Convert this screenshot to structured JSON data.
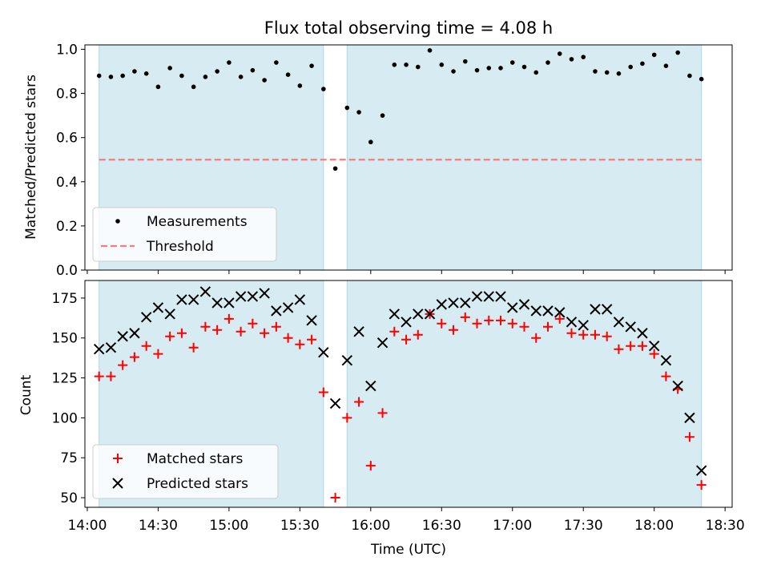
{
  "title": "Flux total observing time = 4.08 h",
  "colors": {
    "shade": "#add8e6",
    "measurement": "#000000",
    "threshold": "#f08080",
    "matched": "#ff0000",
    "predicted": "#000000"
  },
  "chart_data": [
    {
      "type": "scatter",
      "panel": "top",
      "ylabel": "Matched/Predicted stars",
      "xlabel": "",
      "ylim": [
        0.0,
        1.02
      ],
      "xlim": [
        "13:59",
        "18:33"
      ],
      "yticks": [
        "0.0",
        "0.2",
        "0.4",
        "0.6",
        "0.8",
        "1.0"
      ],
      "grid": false,
      "legend_position": "lower-left",
      "shaded_intervals": [
        [
          "14:05",
          "15:40"
        ],
        [
          "15:50",
          "18:20"
        ]
      ],
      "threshold": {
        "name": "Threshold",
        "value": 0.5,
        "style": "dashed"
      },
      "series": [
        {
          "name": "Measurements",
          "marker": "dot",
          "x": [
            "14:05",
            "14:10",
            "14:15",
            "14:20",
            "14:25",
            "14:30",
            "14:35",
            "14:40",
            "14:45",
            "14:50",
            "14:55",
            "15:00",
            "15:05",
            "15:10",
            "15:15",
            "15:20",
            "15:25",
            "15:30",
            "15:35",
            "15:40",
            "15:45",
            "15:50",
            "15:55",
            "16:00",
            "16:05",
            "16:10",
            "16:15",
            "16:20",
            "16:25",
            "16:30",
            "16:35",
            "16:40",
            "16:45",
            "16:50",
            "16:55",
            "17:00",
            "17:05",
            "17:10",
            "17:15",
            "17:20",
            "17:25",
            "17:30",
            "17:35",
            "17:40",
            "17:45",
            "17:50",
            "17:55",
            "18:00",
            "18:05",
            "18:10",
            "18:15",
            "18:20"
          ],
          "y": [
            0.88,
            0.875,
            0.88,
            0.9,
            0.89,
            0.83,
            0.915,
            0.88,
            0.83,
            0.875,
            0.9,
            0.94,
            0.875,
            0.905,
            0.86,
            0.94,
            0.885,
            0.835,
            0.925,
            0.82,
            0.46,
            0.735,
            0.715,
            0.58,
            0.7,
            0.93,
            0.93,
            0.92,
            0.995,
            0.93,
            0.9,
            0.945,
            0.905,
            0.915,
            0.915,
            0.94,
            0.92,
            0.895,
            0.94,
            0.98,
            0.955,
            0.965,
            0.9,
            0.895,
            0.89,
            0.92,
            0.935,
            0.975,
            0.925,
            0.985,
            0.88,
            0.865
          ]
        }
      ]
    },
    {
      "type": "scatter",
      "panel": "bottom",
      "xlabel": "Time (UTC)",
      "ylabel": "Count",
      "ylim": [
        44,
        186
      ],
      "xlim": [
        "13:59",
        "18:33"
      ],
      "xticks": [
        "14:00",
        "14:30",
        "15:00",
        "15:30",
        "16:00",
        "16:30",
        "17:00",
        "17:30",
        "18:00",
        "18:30"
      ],
      "yticks": [
        "50",
        "75",
        "100",
        "125",
        "150",
        "175"
      ],
      "grid": false,
      "legend_position": "lower-left",
      "shaded_intervals": [
        [
          "14:05",
          "15:40"
        ],
        [
          "15:50",
          "18:20"
        ]
      ],
      "x": [
        "14:05",
        "14:10",
        "14:15",
        "14:20",
        "14:25",
        "14:30",
        "14:35",
        "14:40",
        "14:45",
        "14:50",
        "14:55",
        "15:00",
        "15:05",
        "15:10",
        "15:15",
        "15:20",
        "15:25",
        "15:30",
        "15:35",
        "15:40",
        "15:45",
        "15:50",
        "15:55",
        "16:00",
        "16:05",
        "16:10",
        "16:15",
        "16:20",
        "16:25",
        "16:30",
        "16:35",
        "16:40",
        "16:45",
        "16:50",
        "16:55",
        "17:00",
        "17:05",
        "17:10",
        "17:15",
        "17:20",
        "17:25",
        "17:30",
        "17:35",
        "17:40",
        "17:45",
        "17:50",
        "17:55",
        "18:00",
        "18:05",
        "18:10",
        "18:15",
        "18:20"
      ],
      "series": [
        {
          "name": "Matched stars",
          "marker": "plus",
          "values": [
            126,
            126,
            133,
            138,
            145,
            140,
            151,
            153,
            144,
            157,
            155,
            162,
            154,
            159,
            153,
            157,
            150,
            146,
            149,
            116,
            50,
            100,
            110,
            70,
            103,
            154,
            149,
            152,
            165,
            159,
            155,
            163,
            159,
            161,
            161,
            159,
            157,
            150,
            157,
            162,
            153,
            152,
            152,
            151,
            143,
            145,
            145,
            140,
            126,
            118,
            88,
            58
          ]
        },
        {
          "name": "Predicted stars",
          "marker": "x",
          "values": [
            143,
            144,
            151,
            153,
            163,
            169,
            165,
            174,
            174,
            179,
            172,
            172,
            176,
            176,
            178,
            167,
            169,
            174,
            161,
            141,
            109,
            136,
            154,
            120,
            147,
            165,
            160,
            165,
            165,
            171,
            172,
            172,
            176,
            176,
            176,
            169,
            171,
            167,
            167,
            166,
            160,
            158,
            168,
            168,
            160,
            157,
            153,
            145,
            136,
            120,
            100,
            67
          ]
        }
      ]
    }
  ]
}
